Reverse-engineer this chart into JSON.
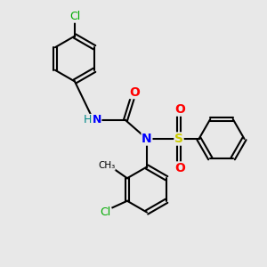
{
  "background_color": "#e8e8e8",
  "bond_color": "#000000",
  "atom_colors": {
    "N": "#0000ff",
    "O": "#ff0000",
    "S": "#cccc00",
    "Cl": "#00aa00",
    "H": "#008888",
    "C": "#000000"
  },
  "title": "",
  "figsize": [
    3.0,
    3.0
  ],
  "dpi": 100
}
